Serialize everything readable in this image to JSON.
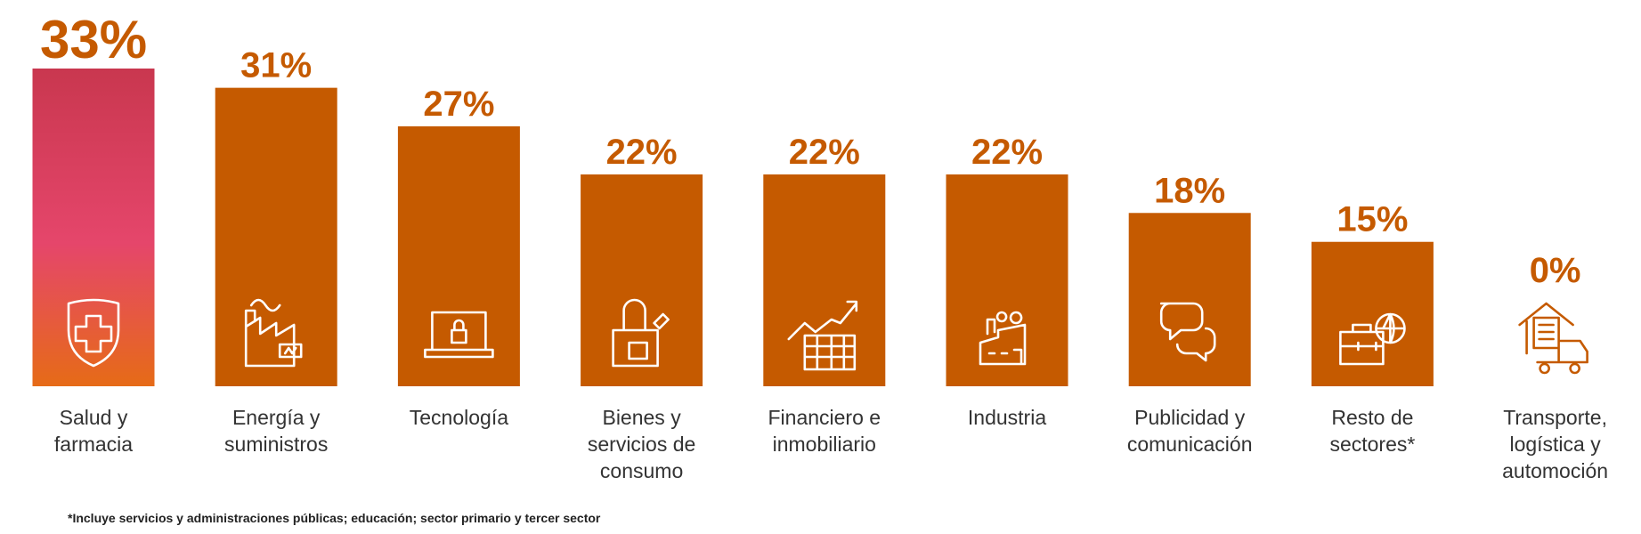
{
  "chart_data": {
    "type": "bar",
    "categories": [
      "Salud y\nfarmacia",
      "Energía y\nsuministros",
      "Tecnología",
      "Bienes y\nservicios de\nconsumo",
      "Financiero e\ninmobiliario",
      "Industria",
      "Publicidad y\ncomunicación",
      "Resto de\nsectores*",
      "Transporte,\nlogística y\nautomoción"
    ],
    "values": [
      33,
      31,
      27,
      22,
      22,
      22,
      18,
      15,
      0
    ],
    "value_labels": [
      "33%",
      "31%",
      "27%",
      "22%",
      "22%",
      "22%",
      "18%",
      "15%",
      "0%"
    ],
    "color": "#c55a00",
    "highlight_index": 0,
    "highlight_gradient": [
      "#c9374f",
      "#e5466b",
      "#e66b17"
    ],
    "footnote": "*Incluye servicios y administraciones públicas; educación; sector primario y tercer sector"
  }
}
